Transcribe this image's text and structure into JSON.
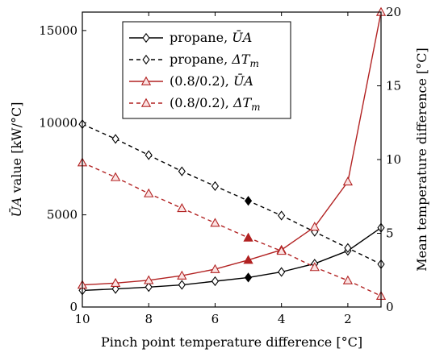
{
  "chart_data": {
    "type": "line",
    "title": "",
    "xlabel": "Pinch point temperature difference [°C]",
    "ylabel_left": "ŪA value [kW/°C]",
    "ylabel_left_parts": {
      "sym": "ŪA",
      "rest": " value [kW/°C]"
    },
    "ylabel_right": "Mean temperature difference [°C]",
    "x": [
      10,
      9,
      8,
      7,
      6,
      5,
      4,
      3,
      2,
      1
    ],
    "xlim": [
      10,
      1
    ],
    "xticks": [
      10,
      8,
      6,
      4,
      2
    ],
    "ylim_left": [
      0,
      16000
    ],
    "yticks_left": [
      0,
      5000,
      10000,
      15000
    ],
    "ylim_right": [
      0,
      20
    ],
    "yticks_right": [
      0,
      5,
      10,
      15,
      20
    ],
    "grid": false,
    "legend_position": "top-right",
    "highlight_x": 5,
    "series": [
      {
        "name": "propane, ŪA",
        "axis": "left",
        "color": "#000000",
        "style": "solid",
        "marker": "diamond",
        "legend_parts": {
          "pre": "propane, ",
          "sym": "ŪA",
          "sub": ""
        },
        "values": [
          900,
          980,
          1080,
          1200,
          1400,
          1600,
          1900,
          2350,
          3050,
          4300
        ]
      },
      {
        "name": "propane, ΔTm",
        "axis": "right",
        "color": "#000000",
        "style": "dashed",
        "marker": "diamond",
        "legend_parts": {
          "pre": "propane, ",
          "sym": "ΔT",
          "sub": "m"
        },
        "values": [
          12.4,
          11.4,
          10.3,
          9.2,
          8.2,
          7.2,
          6.2,
          5.1,
          4.0,
          2.9
        ]
      },
      {
        "name": "(0.8/0.2), ŪA",
        "axis": "left",
        "color": "#b22222",
        "style": "solid",
        "marker": "triangle",
        "legend_parts": {
          "pre": "(0.8/0.2), ",
          "sym": "ŪA",
          "sub": ""
        },
        "values": [
          1200,
          1300,
          1450,
          1700,
          2050,
          2550,
          3100,
          4350,
          6800,
          16000
        ]
      },
      {
        "name": "(0.8/0.2), ΔTm",
        "axis": "right",
        "color": "#b22222",
        "style": "dashed",
        "marker": "triangle",
        "legend_parts": {
          "pre": "(0.8/0.2), ",
          "sym": "ΔT",
          "sub": "m"
        },
        "values": [
          9.8,
          8.8,
          7.7,
          6.7,
          5.7,
          4.7,
          3.8,
          2.7,
          1.8,
          0.75
        ]
      }
    ]
  }
}
